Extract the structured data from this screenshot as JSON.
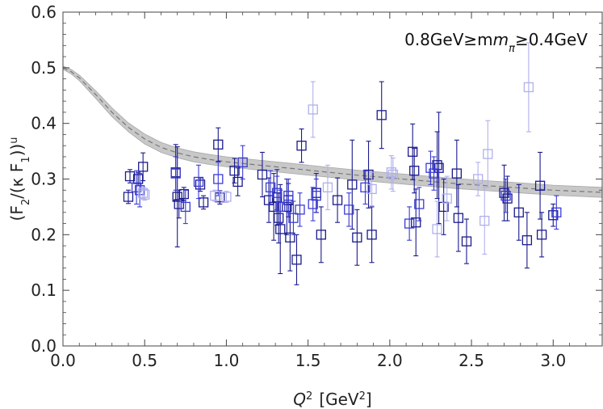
{
  "chart_data": {
    "type": "scatter",
    "title": "",
    "xlabel": "Q",
    "xlabel_sup": "2",
    "xlabel_units_prefix": "[GeV",
    "xlabel_units_sup": "2",
    "xlabel_units_suffix": "]",
    "ylabel_open": "(F",
    "ylabel_sub1": "2",
    "ylabel_mid": "/(κ F",
    "ylabel_sub2": "1",
    "ylabel_close": "))",
    "ylabel_sup": "u",
    "annotation_prefix": "0.8GeV≥m",
    "annotation_sub": "π",
    "annotation_suffix": "≥0.4GeV",
    "xlim": [
      0.0,
      3.3
    ],
    "ylim": [
      0.0,
      0.6
    ],
    "x_ticks": [
      0.0,
      0.5,
      1.0,
      1.5,
      2.0,
      2.5,
      3.0
    ],
    "x_tick_labels": [
      "0.0",
      "0.5",
      "1.0",
      "1.5",
      "2.0",
      "2.5",
      "3.0"
    ],
    "y_ticks": [
      0.0,
      0.1,
      0.2,
      0.3,
      0.4,
      0.5,
      0.6
    ],
    "y_tick_labels": [
      "0.0",
      "0.1",
      "0.2",
      "0.3",
      "0.4",
      "0.5",
      "0.6"
    ],
    "colors": {
      "dark": "#1a1a8c",
      "medium": "#3a3ad6",
      "light": "#b0b0ee",
      "band": "#c8c8c8",
      "fit": "#777777"
    },
    "fit_curve": {
      "x": [
        0.0,
        0.05,
        0.1,
        0.2,
        0.3,
        0.4,
        0.5,
        0.6,
        0.7,
        0.8,
        0.9,
        1.0,
        1.2,
        1.4,
        1.6,
        1.8,
        2.0,
        2.2,
        2.4,
        2.6,
        2.8,
        3.0,
        3.3
      ],
      "y": [
        0.5,
        0.493,
        0.482,
        0.452,
        0.42,
        0.393,
        0.372,
        0.357,
        0.347,
        0.34,
        0.335,
        0.331,
        0.325,
        0.319,
        0.313,
        0.307,
        0.302,
        0.297,
        0.292,
        0.288,
        0.284,
        0.28,
        0.276
      ],
      "half_width": [
        0.003,
        0.004,
        0.005,
        0.007,
        0.008,
        0.008,
        0.009,
        0.009,
        0.009,
        0.009,
        0.009,
        0.009,
        0.009,
        0.009,
        0.009,
        0.009,
        0.009,
        0.009,
        0.009,
        0.009,
        0.009,
        0.009,
        0.009
      ]
    },
    "series": [
      {
        "name": "dark",
        "x": [
          0.4,
          0.41,
          0.46,
          0.49,
          0.69,
          0.7,
          0.71,
          0.74,
          0.84,
          0.86,
          0.95,
          0.96,
          1.05,
          1.07,
          1.22,
          1.26,
          1.29,
          1.31,
          1.32,
          1.33,
          1.37,
          1.38,
          1.39,
          1.43,
          1.46,
          1.55,
          1.58,
          1.68,
          1.77,
          1.8,
          1.87,
          1.89,
          1.95,
          2.14,
          2.15,
          2.16,
          2.29,
          2.3,
          2.33,
          2.41,
          2.42,
          2.47,
          2.7,
          2.72,
          2.79,
          2.84,
          2.92,
          2.93,
          3.0
        ],
        "y": [
          0.268,
          0.305,
          0.3,
          0.322,
          0.312,
          0.268,
          0.255,
          0.273,
          0.29,
          0.258,
          0.362,
          0.267,
          0.315,
          0.295,
          0.308,
          0.262,
          0.25,
          0.267,
          0.23,
          0.21,
          0.25,
          0.262,
          0.195,
          0.155,
          0.36,
          0.275,
          0.2,
          0.262,
          0.29,
          0.195,
          0.308,
          0.2,
          0.415,
          0.349,
          0.315,
          0.222,
          0.325,
          0.32,
          0.25,
          0.31,
          0.23,
          0.188,
          0.275,
          0.265,
          0.24,
          0.19,
          0.288,
          0.2,
          0.235
        ],
        "err": [
          0.012,
          0.012,
          0.012,
          0.025,
          0.05,
          0.09,
          0.025,
          0.012,
          0.012,
          0.012,
          0.03,
          0.012,
          0.022,
          0.025,
          0.04,
          0.04,
          0.06,
          0.05,
          0.045,
          0.08,
          0.05,
          0.03,
          0.06,
          0.045,
          0.03,
          0.035,
          0.05,
          0.04,
          0.08,
          0.05,
          0.06,
          0.05,
          0.06,
          0.05,
          0.04,
          0.06,
          0.06,
          0.1,
          0.05,
          0.06,
          0.06,
          0.04,
          0.05,
          0.04,
          0.05,
          0.05,
          0.06,
          0.04,
          0.02
        ]
      },
      {
        "name": "medium",
        "x": [
          0.45,
          0.47,
          0.69,
          0.75,
          0.83,
          0.95,
          1.1,
          1.27,
          1.31,
          1.33,
          1.38,
          1.41,
          1.45,
          1.53,
          1.55,
          1.75,
          1.85,
          2.12,
          2.18,
          2.25,
          2.27,
          2.71,
          3.02
        ],
        "y": [
          0.285,
          0.28,
          0.31,
          0.25,
          0.295,
          0.3,
          0.33,
          0.285,
          0.275,
          0.25,
          0.27,
          0.23,
          0.245,
          0.255,
          0.27,
          0.245,
          0.285,
          0.22,
          0.255,
          0.32,
          0.31,
          0.27,
          0.24
        ]
      },
      {
        "name": "light",
        "x": [
          0.49,
          0.5,
          0.93,
          1.0,
          1.53,
          1.62,
          1.89,
          2.01,
          2.02,
          2.29,
          2.35,
          2.54,
          2.58,
          2.6,
          2.85
        ],
        "y": [
          0.275,
          0.272,
          0.27,
          0.268,
          0.425,
          0.285,
          0.282,
          0.312,
          0.308,
          0.21,
          0.265,
          0.3,
          0.225,
          0.345,
          0.465
        ],
        "err": [
          0.01,
          0.01,
          0.01,
          0.01,
          0.05,
          0.04,
          0.03,
          0.03,
          0.03,
          0.05,
          0.04,
          0.03,
          0.06,
          0.06,
          0.08
        ]
      }
    ]
  }
}
